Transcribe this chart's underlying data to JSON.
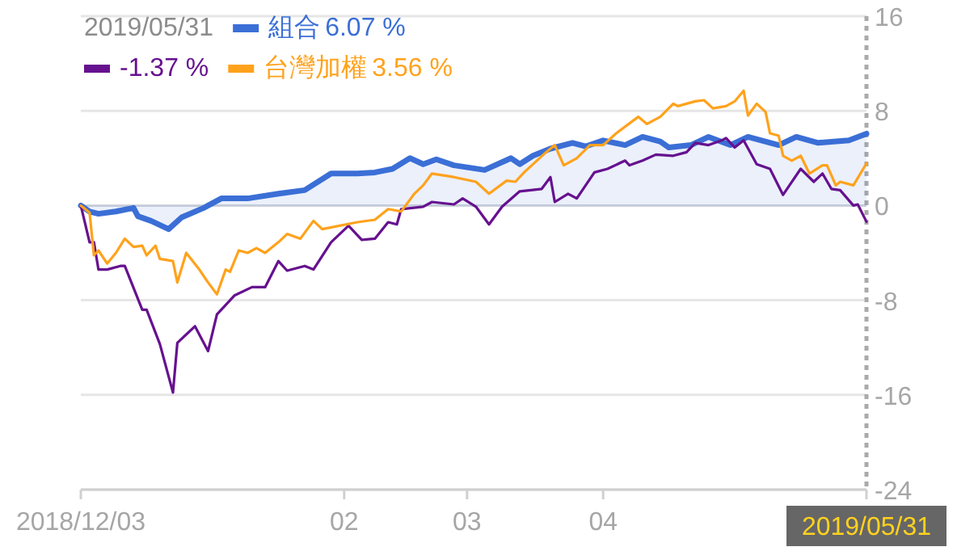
{
  "chart_data": {
    "type": "line",
    "annotations": [
      "2019/05/31",
      "6.07 %",
      "-1.37 %",
      "3.56 %"
    ],
    "xlim": [
      "2018-12-03",
      "2019-05-31"
    ],
    "xticks": [
      {
        "value": "2018-12-03",
        "label": "2018/12/03"
      },
      {
        "value": "2019-02-01",
        "label": "02"
      },
      {
        "value": "2019-03-01",
        "label": "03"
      },
      {
        "value": "2019-04-01",
        "label": "04"
      },
      {
        "value": "2019-05-31",
        "label": "2019/05/31"
      }
    ],
    "ylim": [
      -24,
      16
    ],
    "yticks": [
      16,
      8,
      0,
      -8,
      -16,
      -24
    ],
    "grid": "y",
    "legend": "top left",
    "marker": "none",
    "line_style": "solid",
    "series": [
      {
        "name": "組合",
        "type": "area",
        "color": "#3b6fd6",
        "x": [
          "2018-12-03",
          "2018-12-05",
          "2018-12-07",
          "2018-12-11",
          "2018-12-15",
          "2018-12-16",
          "2018-12-19",
          "2018-12-23",
          "2018-12-26",
          "2018-12-31",
          "2019-01-04",
          "2019-01-10",
          "2019-01-17",
          "2019-01-23",
          "2019-01-29",
          "2019-02-04",
          "2019-02-08",
          "2019-02-12",
          "2019-02-16",
          "2019-02-19",
          "2019-02-22",
          "2019-02-26",
          "2019-03-05",
          "2019-03-11",
          "2019-03-13",
          "2019-03-16",
          "2019-03-20",
          "2019-03-25",
          "2019-03-28",
          "2019-04-01",
          "2019-04-06",
          "2019-04-10",
          "2019-04-14",
          "2019-04-16",
          "2019-04-21",
          "2019-04-25",
          "2019-04-30",
          "2019-05-04",
          "2019-05-11",
          "2019-05-15",
          "2019-05-20",
          "2019-05-27",
          "2019-05-31"
        ],
        "values": [
          0,
          -0.5,
          -0.7,
          -0.5,
          -0.2,
          -0.9,
          -1.3,
          -2.0,
          -1.0,
          -0.2,
          0.6,
          0.6,
          1.0,
          1.3,
          2.7,
          2.7,
          2.8,
          3.1,
          4.0,
          3.5,
          3.9,
          3.4,
          3.0,
          4.0,
          3.5,
          4.2,
          4.8,
          5.3,
          5.0,
          5.5,
          5.1,
          5.8,
          5.4,
          4.9,
          5.1,
          5.8,
          5.1,
          5.8,
          5.1,
          5.8,
          5.3,
          5.5,
          6.07
        ]
      },
      {
        "color": "#66118f",
        "x": [
          "2018-12-03",
          "2018-12-05",
          "2018-12-06",
          "2018-12-07",
          "2018-12-09",
          "2018-12-12",
          "2018-12-13",
          "2018-12-17",
          "2018-12-18",
          "2018-12-21",
          "2018-12-24",
          "2018-12-25",
          "2018-12-27",
          "2018-12-29",
          "2019-01-01",
          "2019-01-03",
          "2019-01-07",
          "2019-01-11",
          "2019-01-14",
          "2019-01-17",
          "2019-01-19",
          "2019-01-23",
          "2019-01-25",
          "2019-01-29",
          "2019-02-02",
          "2019-02-05",
          "2019-02-08",
          "2019-02-11",
          "2019-02-13",
          "2019-02-14",
          "2019-02-19",
          "2019-02-21",
          "2019-02-26",
          "2019-02-28",
          "2019-03-03",
          "2019-03-06",
          "2019-03-09",
          "2019-03-13",
          "2019-03-18",
          "2019-03-20",
          "2019-03-21",
          "2019-03-24",
          "2019-03-26",
          "2019-03-30",
          "2019-04-02",
          "2019-04-06",
          "2019-04-07",
          "2019-04-10",
          "2019-04-13",
          "2019-04-17",
          "2019-04-20",
          "2019-04-22",
          "2019-04-25",
          "2019-04-28",
          "2019-04-29",
          "2019-05-01",
          "2019-05-03",
          "2019-05-06",
          "2019-05-09",
          "2019-05-12",
          "2019-05-16",
          "2019-05-19",
          "2019-05-21",
          "2019-05-23",
          "2019-05-25",
          "2019-05-28",
          "2019-05-29",
          "2019-05-31"
        ],
        "values": [
          0,
          -3.1,
          -3.1,
          -5.4,
          -5.4,
          -5.1,
          -5.1,
          -8.8,
          -8.8,
          -11.7,
          -15.8,
          -11.6,
          -10.9,
          -10.2,
          -12.3,
          -9.2,
          -7.6,
          -6.9,
          -6.9,
          -4.7,
          -5.5,
          -5.1,
          -5.4,
          -3.1,
          -1.7,
          -2.9,
          -2.8,
          -1.4,
          -1.6,
          -0.3,
          -0.1,
          0.3,
          0.1,
          0.6,
          -0.1,
          -1.6,
          -0.1,
          1.2,
          1.4,
          2.4,
          0.3,
          1.0,
          0.6,
          2.8,
          3.1,
          3.8,
          3.4,
          3.8,
          4.3,
          4.2,
          4.5,
          5.3,
          5.1,
          5.5,
          5.7,
          4.9,
          5.5,
          3.5,
          3.1,
          0.9,
          3.1,
          2.0,
          2.7,
          1.4,
          1.3,
          0.0,
          0.1,
          -1.37
        ]
      },
      {
        "name": "台灣加權",
        "color": "#ffa21c",
        "x": [
          "2018-12-03",
          "2018-12-05",
          "2018-12-06",
          "2018-12-07",
          "2018-12-09",
          "2018-12-11",
          "2018-12-13",
          "2018-12-15",
          "2018-12-17",
          "2018-12-18",
          "2018-12-20",
          "2018-12-21",
          "2018-12-24",
          "2018-12-25",
          "2018-12-27",
          "2018-12-30",
          "2019-01-01",
          "2019-01-03",
          "2019-01-05",
          "2019-01-06",
          "2019-01-08",
          "2019-01-10",
          "2019-01-12",
          "2019-01-14",
          "2019-01-17",
          "2019-01-19",
          "2019-01-22",
          "2019-01-25",
          "2019-01-27",
          "2019-02-04",
          "2019-02-08",
          "2019-02-11",
          "2019-02-14",
          "2019-02-17",
          "2019-02-19",
          "2019-02-21",
          "2019-02-26",
          "2019-03-03",
          "2019-03-06",
          "2019-03-10",
          "2019-03-12",
          "2019-03-14",
          "2019-03-19",
          "2019-03-21",
          "2019-03-23",
          "2019-03-26",
          "2019-03-29",
          "2019-04-01",
          "2019-04-04",
          "2019-04-09",
          "2019-04-11",
          "2019-04-14",
          "2019-04-17",
          "2019-04-18",
          "2019-04-22",
          "2019-04-24",
          "2019-04-26",
          "2019-04-29",
          "2019-05-01",
          "2019-05-03",
          "2019-05-04",
          "2019-05-06",
          "2019-05-08",
          "2019-05-09",
          "2019-05-11",
          "2019-05-12",
          "2019-05-14",
          "2019-05-16",
          "2019-05-18",
          "2019-05-21",
          "2019-05-22",
          "2019-05-24",
          "2019-05-25",
          "2019-05-28",
          "2019-05-31"
        ],
        "values": [
          0,
          -0.6,
          -4.2,
          -3.8,
          -4.9,
          -4.0,
          -2.8,
          -3.5,
          -3.4,
          -4.2,
          -3.4,
          -4.5,
          -4.7,
          -6.5,
          -4.0,
          -5.4,
          -6.5,
          -7.5,
          -5.4,
          -5.6,
          -3.8,
          -4.0,
          -3.6,
          -4.0,
          -3.1,
          -2.4,
          -2.8,
          -1.3,
          -2.0,
          -1.4,
          -1.2,
          -0.3,
          -0.5,
          1.0,
          1.7,
          2.7,
          2.4,
          2.0,
          1.0,
          2.1,
          2.0,
          2.8,
          4.5,
          5.1,
          3.4,
          4.0,
          5.1,
          5.1,
          6.1,
          7.5,
          6.9,
          7.5,
          8.6,
          8.4,
          8.8,
          8.9,
          8.2,
          8.4,
          8.8,
          9.7,
          7.6,
          8.6,
          7.9,
          6.1,
          5.9,
          4.2,
          3.8,
          4.2,
          2.7,
          3.4,
          3.4,
          1.7,
          2.0,
          1.7,
          3.56
        ]
      }
    ]
  }
}
